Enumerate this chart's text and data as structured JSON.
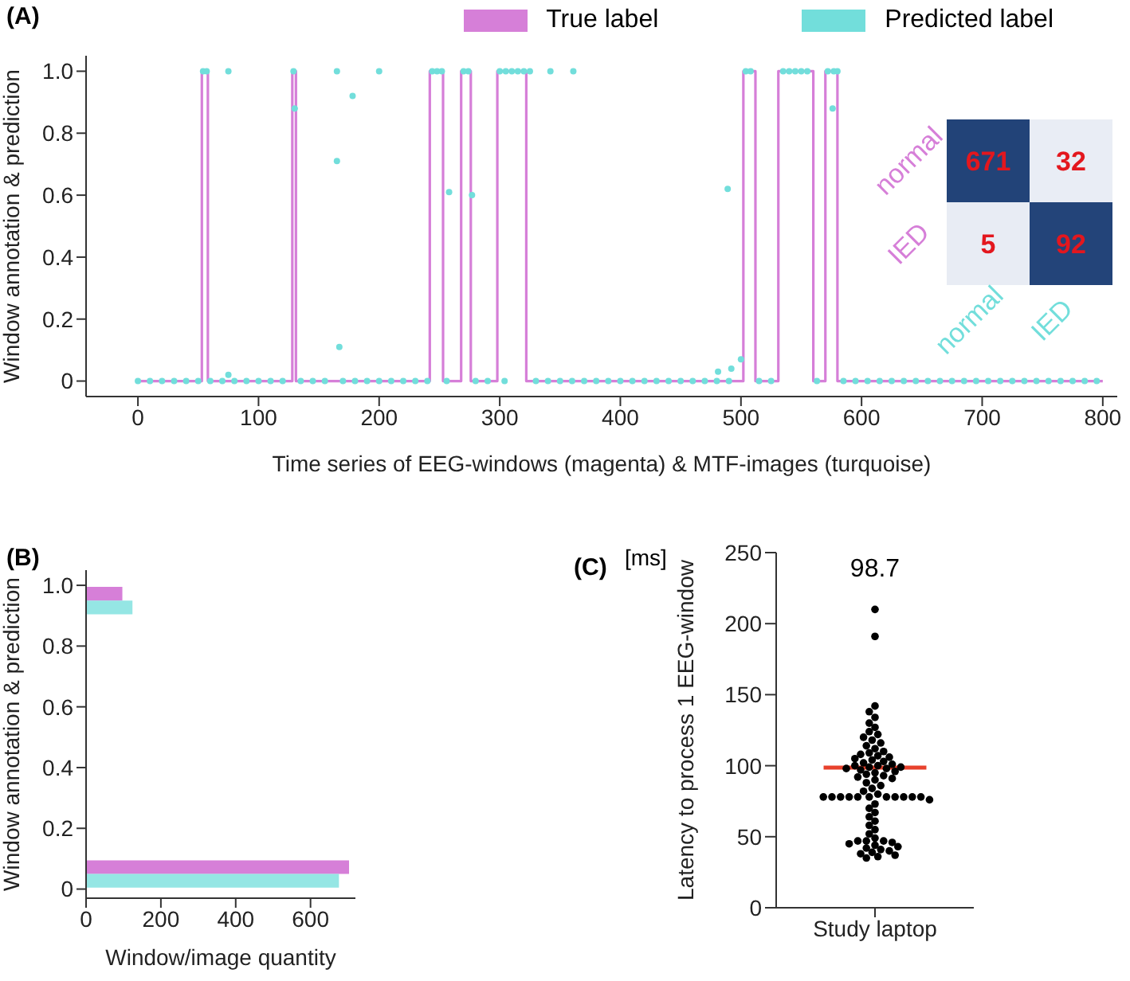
{
  "chart_data": [
    {
      "type": "step",
      "title": "(A)",
      "xlabel": "Time series of EEG-windows (magenta) & MTF-images (turquoise)",
      "ylabel": "Window annotation & prediction",
      "xlim": [
        -43,
        812
      ],
      "xticks": [
        0,
        100,
        200,
        300,
        400,
        500,
        600,
        700,
        800
      ],
      "ylim": [
        -0.05,
        1.05
      ],
      "yticks": [
        0,
        0.2,
        0.4,
        0.6,
        0.8,
        {
          "value": 1,
          "label": "1.0"
        }
      ],
      "legend": "top right",
      "series": [
        {
          "name": "True label",
          "type": "step",
          "color": "#d67fd8",
          "x": [
            0,
            53,
            58,
            128,
            131,
            242,
            253,
            268,
            276,
            298,
            322,
            502,
            512,
            531,
            560,
            570,
            580,
            800
          ],
          "values": [
            0,
            1,
            0,
            1,
            0,
            1,
            0,
            1,
            0,
            1,
            0,
            1,
            0,
            1,
            0,
            1,
            0,
            0
          ]
        },
        {
          "name": "Predicted label",
          "type": "scatter",
          "marker": "circle",
          "color": "#72dedb",
          "x": [
            0,
            10,
            20,
            30,
            40,
            50,
            54,
            57,
            60,
            70,
            75,
            75,
            80,
            90,
            100,
            110,
            120,
            129,
            130,
            135,
            145,
            155,
            165,
            165,
            167,
            170,
            178,
            180,
            190,
            200,
            200,
            210,
            220,
            230,
            240,
            244,
            248,
            252,
            256,
            258,
            270,
            274,
            277,
            280,
            290,
            300,
            304,
            305,
            310,
            315,
            320,
            325,
            330,
            340,
            342,
            350,
            360,
            361,
            370,
            380,
            390,
            400,
            410,
            420,
            430,
            440,
            450,
            460,
            470,
            480,
            481,
            489,
            490,
            492,
            500,
            504,
            508,
            515,
            525,
            535,
            540,
            545,
            550,
            555,
            563,
            572,
            576,
            577,
            580,
            585,
            595,
            605,
            615,
            625,
            635,
            645,
            655,
            665,
            675,
            685,
            695,
            705,
            715,
            725,
            735,
            745,
            755,
            765,
            775,
            785,
            795
          ],
          "values": [
            0,
            0,
            0,
            0,
            0,
            0,
            1,
            1,
            0,
            0,
            1,
            0.02,
            0,
            0,
            0,
            0,
            0,
            1,
            0.88,
            0,
            0,
            0,
            1,
            0.71,
            0.11,
            0,
            0.92,
            0,
            0,
            1,
            0,
            0,
            0,
            0,
            0,
            1,
            1,
            1,
            0,
            0.61,
            1,
            1,
            0.6,
            0,
            0,
            1,
            0,
            1,
            1,
            1,
            1,
            1,
            0,
            0,
            1,
            0,
            0,
            1,
            0,
            0,
            0,
            0,
            0,
            0,
            0,
            0,
            0,
            0,
            0,
            0,
            0.03,
            0.62,
            0,
            0.04,
            0.07,
            1,
            1,
            0,
            0,
            1,
            1,
            1,
            1,
            1,
            0,
            1,
            0.88,
            1,
            1,
            0,
            0,
            0,
            0,
            0,
            0,
            0,
            0,
            0,
            0,
            0,
            0,
            0,
            0,
            0,
            0,
            0,
            0,
            0,
            0,
            0,
            0
          ]
        }
      ]
    },
    {
      "type": "heatmap",
      "categories": [
        "normal",
        "IED"
      ],
      "y_categories": [
        "normal",
        "IED"
      ],
      "cells": [
        [
          671,
          32
        ],
        [
          5,
          92
        ]
      ],
      "data_labels": true
    },
    {
      "type": "histogram",
      "title": "(B)",
      "orientation": "horizontal",
      "xlabel": "Window/image quantity",
      "ylabel": "Window annotation & prediction",
      "bins": [
        0,
        0.1,
        0.2,
        0.3,
        0.4,
        0.5,
        0.6,
        0.7,
        0.8,
        0.9,
        1
      ],
      "xlim": [
        0,
        720
      ],
      "xticks": [
        0,
        200,
        400,
        600
      ],
      "ylim": [
        -0.03,
        1.05
      ],
      "yticks": [
        0,
        0.2,
        0.4,
        0.6,
        0.8,
        {
          "value": 1,
          "label": "1.0"
        }
      ],
      "series": [
        {
          "color": "#d67fd8",
          "values": [
            703,
            0,
            0,
            0,
            0,
            0,
            0,
            0,
            0,
            97
          ]
        },
        {
          "color": "#72dedb",
          "values": [
            676,
            0,
            0,
            0,
            0,
            0,
            0,
            0,
            0,
            124
          ]
        }
      ]
    },
    {
      "type": "scatter",
      "title": "(C)",
      "categories": [
        "Study laptop"
      ],
      "ylabel": "Latency to process 1 EEG-window",
      "ylim": [
        0,
        250
      ],
      "yticks": [
        0,
        50,
        100,
        150,
        200,
        250
      ],
      "annotations": [
        "[ms]",
        "98.7"
      ],
      "ref_lines": [
        {
          "axis": "y",
          "value": 98.7,
          "color": "#e8412c"
        }
      ],
      "series": [
        {
          "color": "#000000",
          "x": [
            "Study laptop",
            "Study laptop",
            "Study laptop",
            "Study laptop",
            "Study laptop",
            "Study laptop",
            "Study laptop",
            "Study laptop",
            "Study laptop",
            "Study laptop",
            "Study laptop",
            "Study laptop",
            "Study laptop",
            "Study laptop",
            "Study laptop",
            "Study laptop",
            "Study laptop",
            "Study laptop",
            "Study laptop",
            "Study laptop",
            "Study laptop",
            "Study laptop",
            "Study laptop",
            "Study laptop",
            "Study laptop",
            "Study laptop",
            "Study laptop",
            "Study laptop",
            "Study laptop",
            "Study laptop",
            "Study laptop",
            "Study laptop",
            "Study laptop",
            "Study laptop",
            "Study laptop",
            "Study laptop",
            "Study laptop",
            "Study laptop",
            "Study laptop",
            "Study laptop",
            "Study laptop",
            "Study laptop",
            "Study laptop",
            "Study laptop",
            "Study laptop",
            "Study laptop",
            "Study laptop",
            "Study laptop",
            "Study laptop",
            "Study laptop",
            "Study laptop",
            "Study laptop",
            "Study laptop",
            "Study laptop",
            "Study laptop",
            "Study laptop",
            "Study laptop",
            "Study laptop",
            "Study laptop",
            "Study laptop",
            "Study laptop",
            "Study laptop",
            "Study laptop",
            "Study laptop",
            "Study laptop",
            "Study laptop",
            "Study laptop",
            "Study laptop",
            "Study laptop",
            "Study laptop",
            "Study laptop",
            "Study laptop",
            "Study laptop",
            "Study laptop",
            "Study laptop",
            "Study laptop",
            "Study laptop",
            "Study laptop",
            "Study laptop"
          ],
          "values": [
            210,
            191,
            142,
            138,
            134,
            130,
            127,
            124,
            122,
            120,
            118,
            116,
            114,
            112,
            110,
            109,
            108,
            107,
            106,
            105,
            104,
            103,
            102,
            101,
            100,
            100,
            99,
            99,
            98,
            98,
            97,
            96,
            95,
            94,
            93,
            92,
            91,
            90,
            88,
            86,
            84,
            82,
            80,
            78,
            78,
            78,
            78,
            78,
            78,
            78,
            78,
            78,
            78,
            78,
            76,
            73,
            70,
            67,
            64,
            61,
            58,
            55,
            52,
            49,
            47,
            47,
            47,
            46,
            45,
            44,
            43,
            42,
            41,
            40,
            39,
            38,
            37,
            36,
            35
          ]
        }
      ]
    }
  ]
}
